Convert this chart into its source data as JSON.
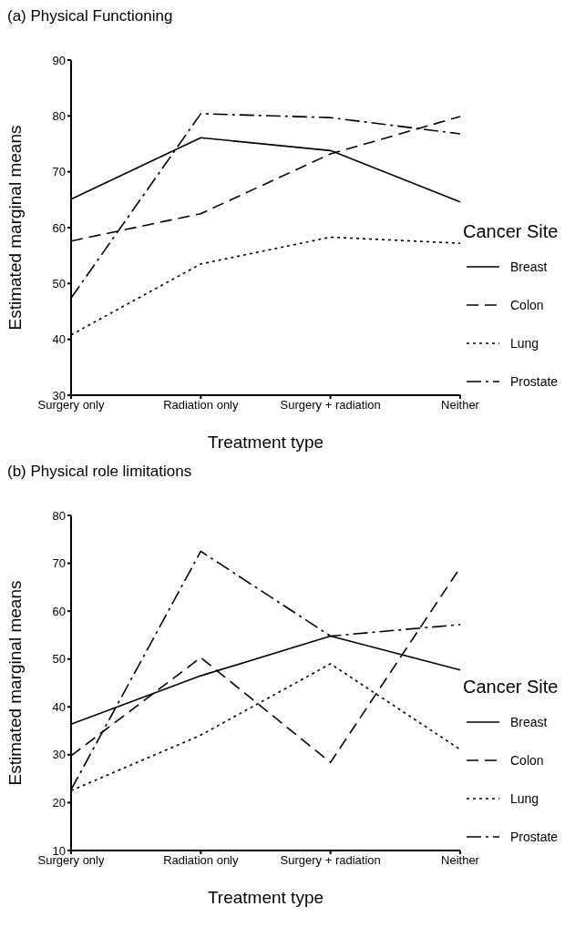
{
  "chart_data": [
    {
      "type": "line",
      "title": "(a)  Physical Functioning",
      "xlabel": "Treatment  type",
      "ylabel": "Estimated marginal means",
      "legend_title": "Cancer Site",
      "legend": "right",
      "categories": [
        "Surgery only",
        "Radiation only",
        "Surgery + radiation",
        "Neither"
      ],
      "ylim": [
        30,
        90
      ],
      "yticks": [
        30,
        40,
        50,
        60,
        70,
        80,
        90
      ],
      "series": [
        {
          "name": "Breast",
          "color": "#000000",
          "line_style": "solid",
          "values": [
            65.1,
            76.1,
            73.8,
            64.6
          ]
        },
        {
          "name": "Colon",
          "color": "#000000",
          "line_style": "dashed",
          "values": [
            57.6,
            62.5,
            73.2,
            79.9
          ]
        },
        {
          "name": "Lung",
          "color": "#000000",
          "line_style": "dotted",
          "values": [
            40.8,
            53.5,
            58.3,
            57.2
          ]
        },
        {
          "name": "Prostate",
          "color": "#000000",
          "line_style": "dashdot",
          "values": [
            47.4,
            80.4,
            79.7,
            76.8
          ]
        }
      ]
    },
    {
      "type": "line",
      "title": "(b) Physical role limitations",
      "xlabel": "Treatment  type",
      "ylabel": "Estimated marginal means",
      "legend_title": "Cancer Site",
      "legend": "right",
      "categories": [
        "Surgery only",
        "Radiation only",
        "Surgery + radiation",
        "Neither"
      ],
      "ylim": [
        10,
        80
      ],
      "yticks": [
        10,
        20,
        30,
        40,
        50,
        60,
        70,
        80
      ],
      "series": [
        {
          "name": "Breast",
          "color": "#000000",
          "line_style": "solid",
          "values": [
            36.4,
            46.5,
            54.8,
            47.7
          ]
        },
        {
          "name": "Colon",
          "color": "#000000",
          "line_style": "dashed",
          "values": [
            29.8,
            50.3,
            28.4,
            69.1
          ]
        },
        {
          "name": "Lung",
          "color": "#000000",
          "line_style": "dotted",
          "values": [
            22.5,
            34.1,
            49.0,
            31.1
          ]
        },
        {
          "name": "Prostate",
          "color": "#000000",
          "line_style": "dashdot",
          "values": [
            22.7,
            72.5,
            54.8,
            57.2
          ]
        }
      ]
    }
  ]
}
